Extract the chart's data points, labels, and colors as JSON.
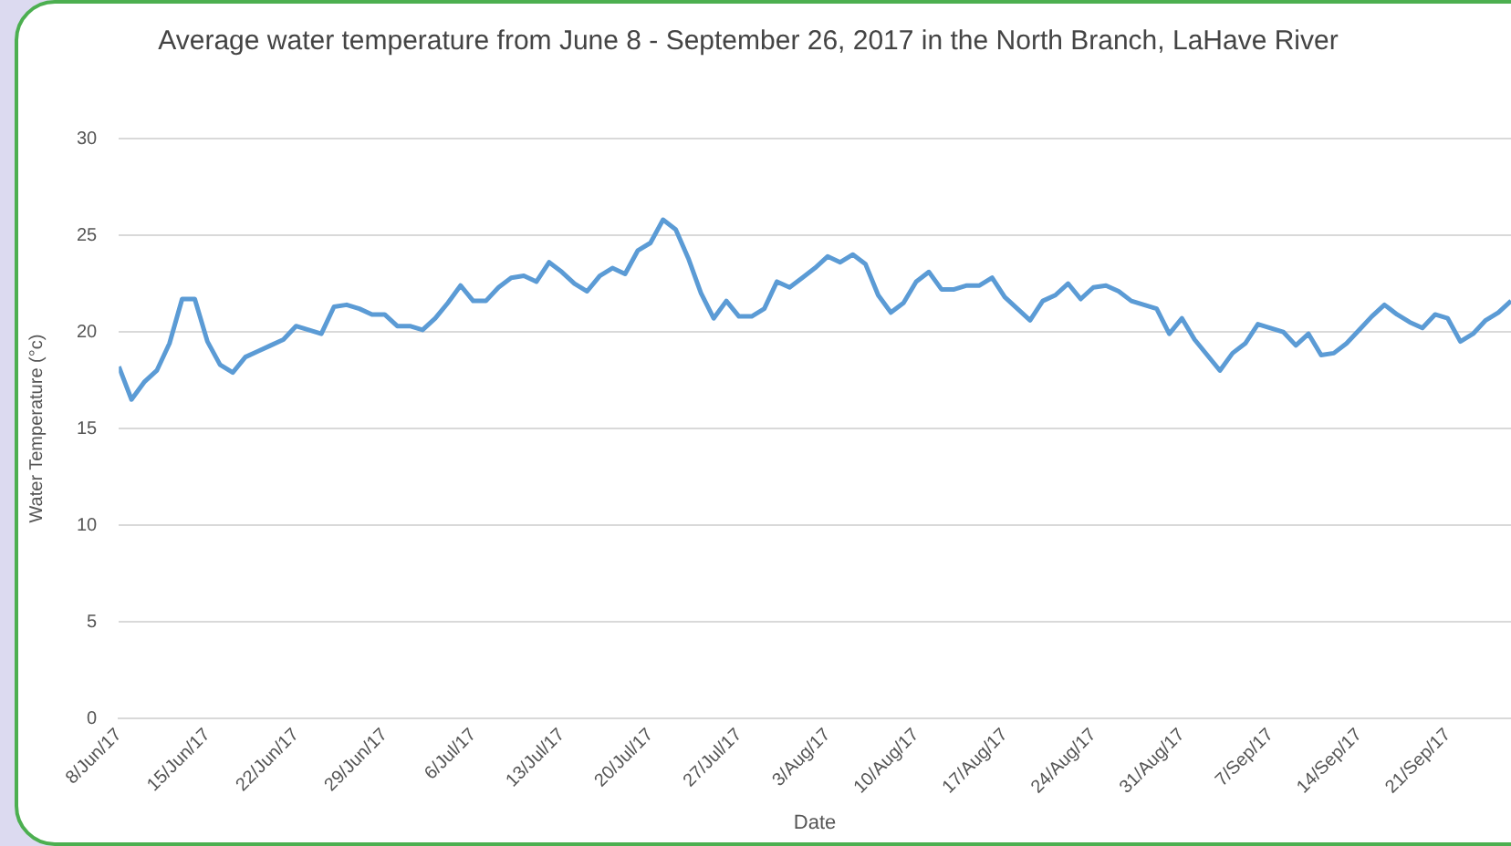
{
  "chart_data": {
    "type": "line",
    "title": "Average water temperature from June 8 - September 26, 2017 in the North Branch, LaHave River",
    "xlabel": "Date",
    "ylabel": "Water Temperature (°c)",
    "x": [
      "2017-06-08",
      "2017-06-09",
      "2017-06-10",
      "2017-06-11",
      "2017-06-12",
      "2017-06-13",
      "2017-06-14",
      "2017-06-15",
      "2017-06-16",
      "2017-06-17",
      "2017-06-18",
      "2017-06-19",
      "2017-06-20",
      "2017-06-21",
      "2017-06-22",
      "2017-06-23",
      "2017-06-24",
      "2017-06-25",
      "2017-06-26",
      "2017-06-27",
      "2017-06-28",
      "2017-06-29",
      "2017-06-30",
      "2017-07-01",
      "2017-07-02",
      "2017-07-03",
      "2017-07-04",
      "2017-07-05",
      "2017-07-06",
      "2017-07-07",
      "2017-07-08",
      "2017-07-09",
      "2017-07-10",
      "2017-07-11",
      "2017-07-12",
      "2017-07-13",
      "2017-07-14",
      "2017-07-15",
      "2017-07-16",
      "2017-07-17",
      "2017-07-18",
      "2017-07-19",
      "2017-07-20",
      "2017-07-21",
      "2017-07-22",
      "2017-07-23",
      "2017-07-24",
      "2017-07-25",
      "2017-07-26",
      "2017-07-27",
      "2017-07-28",
      "2017-07-29",
      "2017-07-30",
      "2017-07-31",
      "2017-08-01",
      "2017-08-02",
      "2017-08-03",
      "2017-08-04",
      "2017-08-05",
      "2017-08-06",
      "2017-08-07",
      "2017-08-08",
      "2017-08-09",
      "2017-08-10",
      "2017-08-11",
      "2017-08-12",
      "2017-08-13",
      "2017-08-14",
      "2017-08-15",
      "2017-08-16",
      "2017-08-17",
      "2017-08-18",
      "2017-08-19",
      "2017-08-20",
      "2017-08-21",
      "2017-08-22",
      "2017-08-23",
      "2017-08-24",
      "2017-08-25",
      "2017-08-26",
      "2017-08-27",
      "2017-08-28",
      "2017-08-29",
      "2017-08-30",
      "2017-08-31",
      "2017-09-01",
      "2017-09-02",
      "2017-09-03",
      "2017-09-04",
      "2017-09-05",
      "2017-09-06",
      "2017-09-07",
      "2017-09-08",
      "2017-09-09",
      "2017-09-10",
      "2017-09-11",
      "2017-09-12",
      "2017-09-13",
      "2017-09-14",
      "2017-09-15",
      "2017-09-16",
      "2017-09-17",
      "2017-09-18",
      "2017-09-19",
      "2017-09-20",
      "2017-09-21",
      "2017-09-22",
      "2017-09-23",
      "2017-09-24",
      "2017-09-25",
      "2017-09-26"
    ],
    "series": [
      {
        "color": "#5b9bd5",
        "values": [
          18.2,
          16.5,
          17.4,
          18.0,
          19.4,
          21.7,
          21.7,
          19.5,
          18.3,
          17.9,
          18.7,
          19.0,
          19.3,
          19.6,
          20.3,
          20.1,
          19.9,
          21.3,
          21.4,
          21.2,
          20.9,
          20.9,
          20.3,
          20.3,
          20.1,
          20.7,
          21.5,
          22.4,
          21.6,
          21.6,
          22.3,
          22.8,
          22.9,
          22.6,
          23.6,
          23.1,
          22.5,
          22.1,
          22.9,
          23.3,
          23.0,
          24.2,
          24.6,
          25.8,
          25.3,
          23.8,
          22.0,
          20.7,
          21.6,
          20.8,
          20.8,
          21.2,
          22.6,
          22.3,
          22.8,
          23.3,
          23.9,
          23.6,
          24.0,
          23.5,
          21.9,
          21.0,
          21.5,
          22.6,
          23.1,
          22.2,
          22.2,
          22.4,
          22.4,
          22.8,
          21.8,
          21.2,
          20.6,
          21.6,
          21.9,
          22.5,
          21.7,
          22.3,
          22.4,
          22.1,
          21.6,
          21.4,
          21.2,
          19.9,
          20.7,
          19.6,
          18.8,
          18.0,
          18.9,
          19.4,
          20.4,
          20.2,
          20.0,
          19.3,
          19.9,
          18.8,
          18.9,
          19.4,
          20.1,
          20.8,
          21.4,
          20.9,
          20.5,
          20.2,
          20.9,
          20.7,
          19.5,
          19.9,
          20.6,
          21.0,
          21.6
        ]
      }
    ],
    "xlim": [
      "2017-06-08",
      "2017-09-26"
    ],
    "xticks": [
      {
        "value": "2017-06-08",
        "label": "8/Jun/17"
      },
      {
        "value": "2017-06-15",
        "label": "15/Jun/17"
      },
      {
        "value": "2017-06-22",
        "label": "22/Jun/17"
      },
      {
        "value": "2017-06-29",
        "label": "29/Jun/17"
      },
      {
        "value": "2017-07-06",
        "label": "6/Jul/17"
      },
      {
        "value": "2017-07-13",
        "label": "13/Jul/17"
      },
      {
        "value": "2017-07-20",
        "label": "20/Jul/17"
      },
      {
        "value": "2017-07-27",
        "label": "27/Jul/17"
      },
      {
        "value": "2017-08-03",
        "label": "3/Aug/17"
      },
      {
        "value": "2017-08-10",
        "label": "10/Aug/17"
      },
      {
        "value": "2017-08-17",
        "label": "17/Aug/17"
      },
      {
        "value": "2017-08-24",
        "label": "24/Aug/17"
      },
      {
        "value": "2017-08-31",
        "label": "31/Aug/17"
      },
      {
        "value": "2017-09-07",
        "label": "7/Sep/17"
      },
      {
        "value": "2017-09-14",
        "label": "14/Sep/17"
      },
      {
        "value": "2017-09-21",
        "label": "21/Sep/17"
      }
    ],
    "ylim": [
      0,
      30
    ],
    "yticks": [
      0,
      5,
      10,
      15,
      20,
      25,
      30
    ],
    "grid": "y",
    "legend": false,
    "marker": "none",
    "line_style": "solid"
  }
}
